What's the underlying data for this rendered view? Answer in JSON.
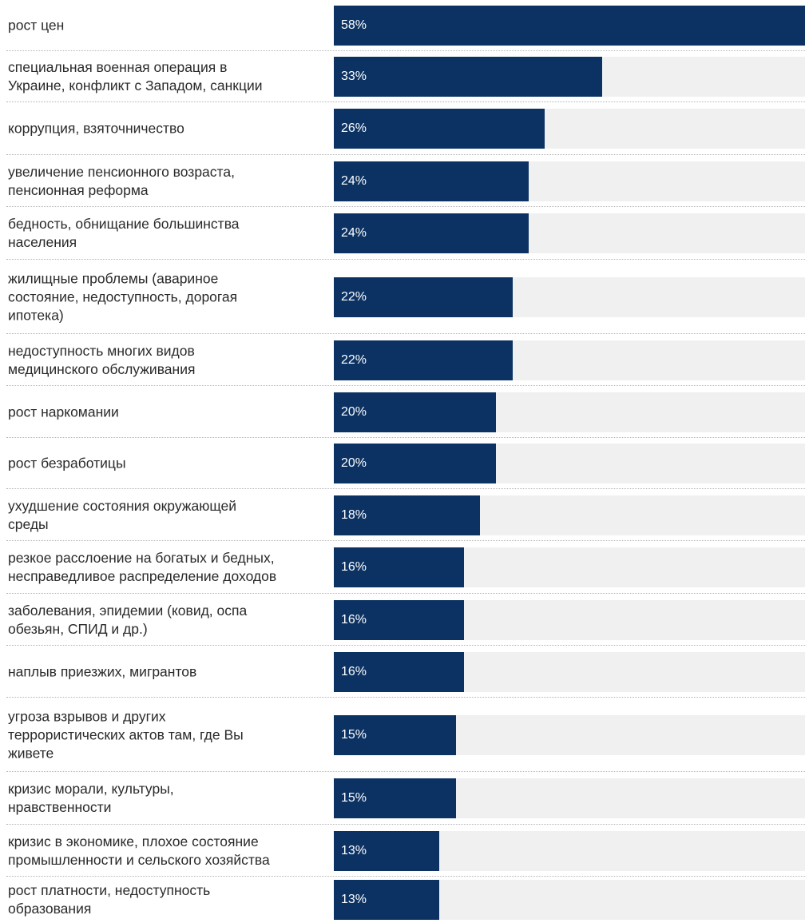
{
  "chart_data": {
    "type": "bar",
    "orientation": "horizontal",
    "bar_color": "#0b3263",
    "track_color": "#f0f0f0",
    "xlim": [
      0,
      58
    ],
    "categories": [
      "рост цен",
      "специальная военная операция в\nУкраине, конфликт с Западом, санкции",
      "коррупция, взяточничество",
      "увеличение пенсионного возраста,\nпенсионная реформа",
      "бедность, обнищание большинства\nнаселения",
      "жилищные проблемы (авариное\nсостояние, недоступность, дорогая\nипотека)",
      "недоступность многих видов\nмедицинского обслуживания",
      "рост наркомании",
      "рост безработицы",
      "ухудшение состояния окружающей\nсреды",
      "резкое расслоение на богатых и бедных,\nнесправедливое распределение доходов",
      "заболевания, эпидемии (ковид, оспа\nобезьян, СПИД и др.)",
      "наплыв приезжих, мигрантов",
      "угроза взрывов и других\nтеррористических актов там, где Вы\nживете",
      "кризис морали, культуры,\nнравственности",
      "кризис в экономике, плохое состояние\nпромышленности и сельского хозяйства",
      "рост платности, недоступность\nобразования"
    ],
    "values": [
      58,
      33,
      26,
      24,
      24,
      22,
      22,
      20,
      20,
      18,
      16,
      16,
      16,
      15,
      15,
      13,
      13
    ],
    "value_labels": [
      "58%",
      "33%",
      "26%",
      "24%",
      "24%",
      "22%",
      "22%",
      "20%",
      "20%",
      "18%",
      "16%",
      "16%",
      "16%",
      "15%",
      "15%",
      "13%",
      "13%"
    ]
  }
}
